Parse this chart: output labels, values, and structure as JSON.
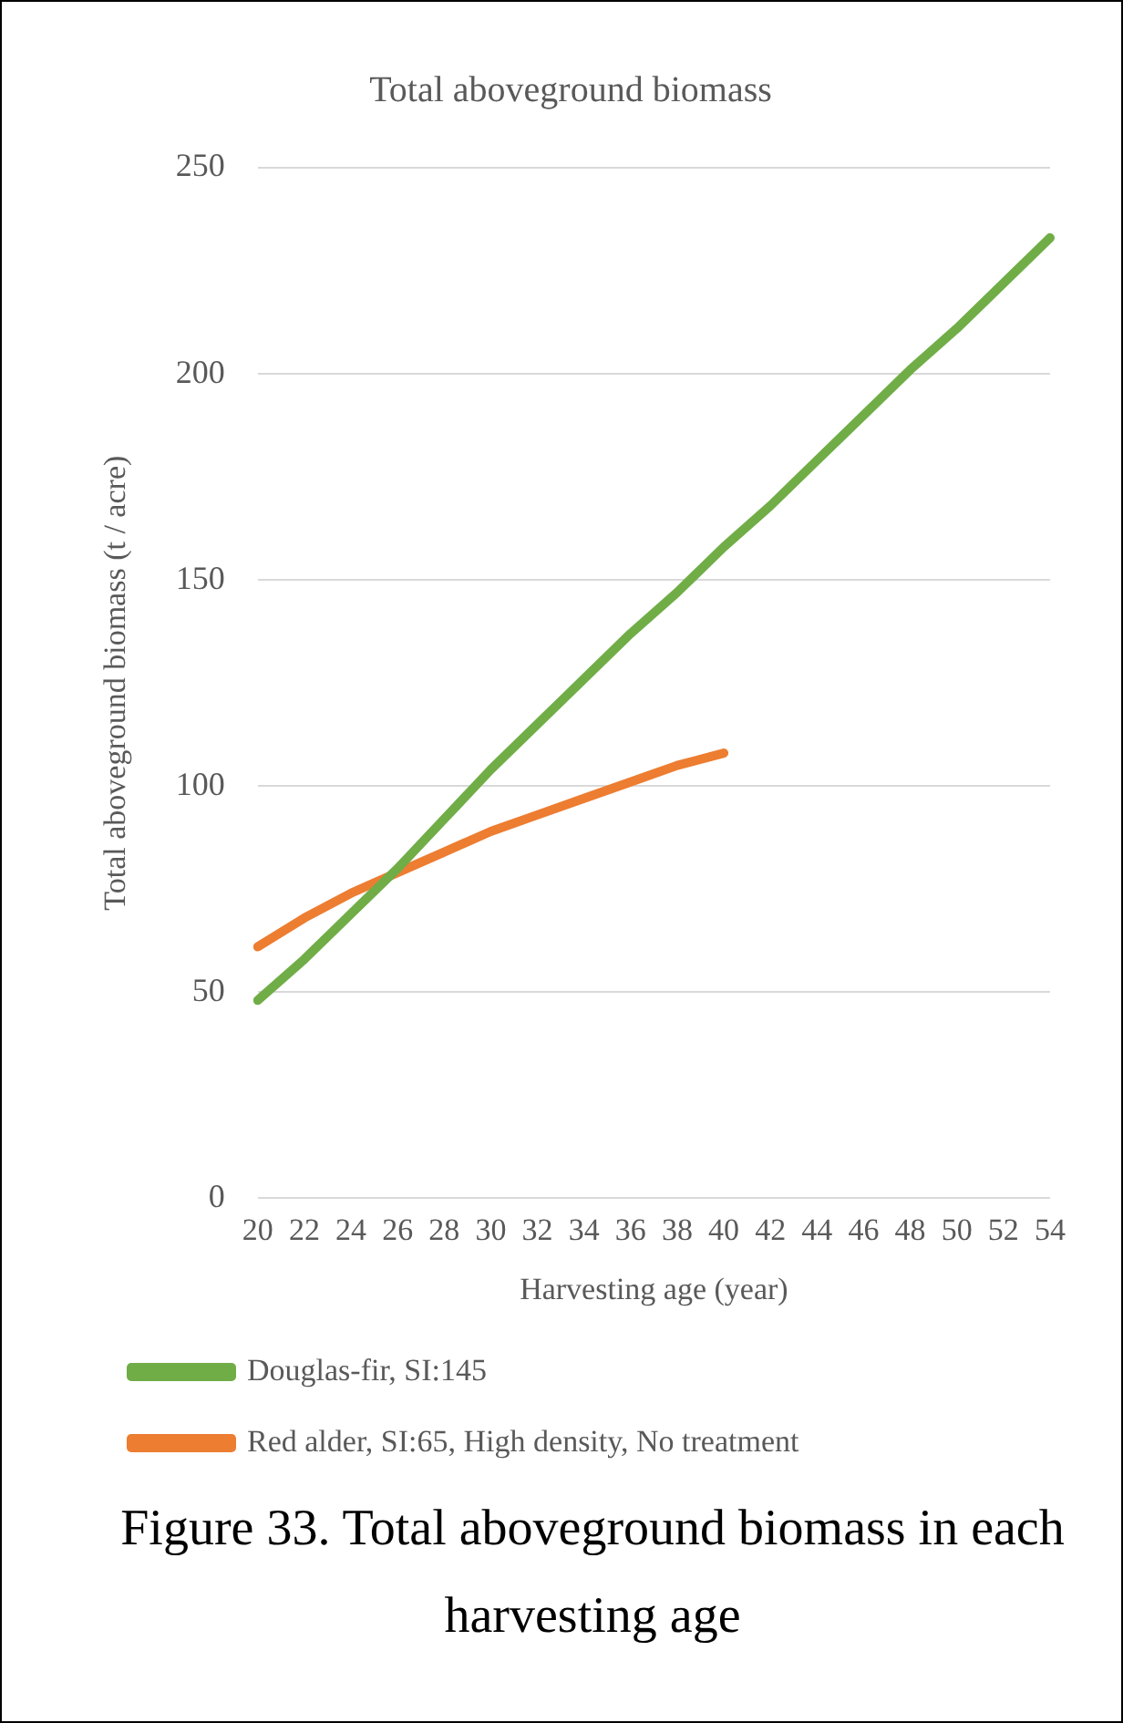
{
  "chart_data": {
    "type": "line",
    "title": "Total aboveground biomass",
    "xlabel": "Harvesting age (year)",
    "ylabel": "Total aboveground biomass (t / acre)",
    "categories": [
      "20",
      "22",
      "24",
      "26",
      "28",
      "30",
      "32",
      "34",
      "36",
      "38",
      "40",
      "42",
      "44",
      "46",
      "48",
      "50",
      "52",
      "54"
    ],
    "series": [
      {
        "name": "Douglas-fir, SI:145",
        "color": "#70ad47",
        "values": [
          48,
          58,
          69,
          80,
          92,
          104,
          115,
          126,
          137,
          147,
          158,
          168,
          179,
          190,
          201,
          211,
          222,
          233
        ]
      },
      {
        "name": "Red alder, SI:65, High density, No treatment",
        "color": "#ed7d31",
        "values": [
          61,
          68,
          74,
          79,
          84,
          89,
          93,
          97,
          101,
          105,
          108,
          null,
          null,
          null,
          null,
          null,
          null,
          null
        ]
      }
    ],
    "ylim": [
      0,
      250
    ],
    "yticks": [
      0,
      50,
      100,
      150,
      200,
      250
    ],
    "grid": "y",
    "legend": "bottom",
    "marker": "none",
    "line_style": "solid",
    "annotations": [
      "Figure 33. Total aboveground biomass in each harvesting age"
    ]
  }
}
